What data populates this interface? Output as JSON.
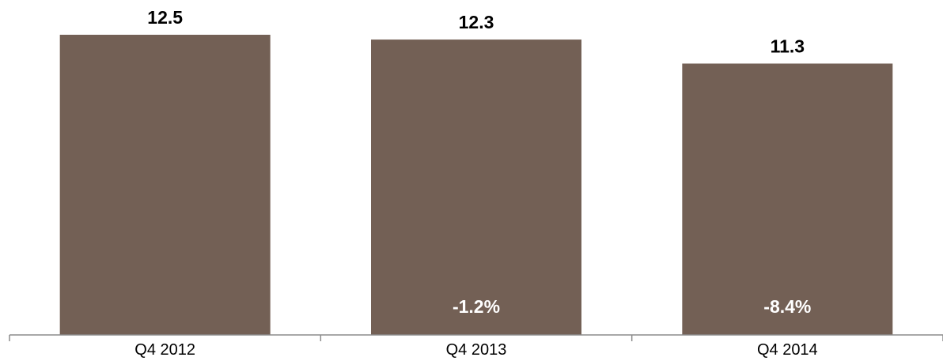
{
  "chart_data": {
    "type": "bar",
    "categories": [
      "Q4 2012",
      "Q4 2013",
      "Q4 2014"
    ],
    "values": [
      12.5,
      12.3,
      11.3
    ],
    "value_labels": [
      "12.5",
      "12.3",
      "11.3"
    ],
    "change_labels": [
      "",
      "-1.2%",
      "-8.4%"
    ],
    "title": "",
    "xlabel": "",
    "ylabel": "",
    "ylim": [
      0,
      12.5
    ],
    "grid": false,
    "legend": "none",
    "colors": {
      "bar": "#736055",
      "axis": "#8c8c8c",
      "change_label": "#ffffff",
      "value_label": "#000000"
    }
  }
}
